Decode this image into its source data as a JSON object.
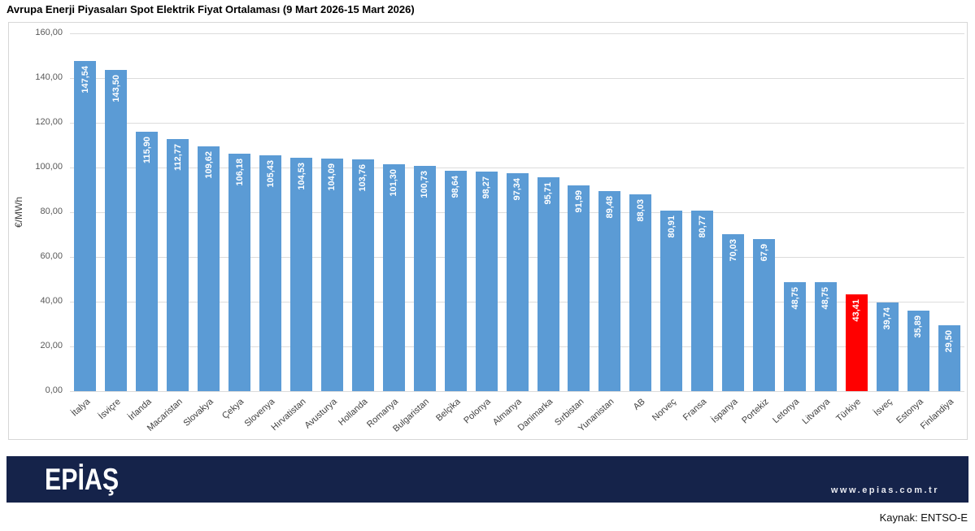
{
  "title": "Avrupa Enerji Piyasaları Spot Elektrik Fiyat Ortalaması (9 Mart 2026-15 Mart 2026)",
  "chart_data": {
    "type": "bar",
    "title": "Avrupa Enerji Piyasaları Spot Elektrik Fiyat Ortalaması (9 Mart 2026-15 Mart 2026)",
    "ylabel": "€/MWh",
    "xlabel": "",
    "ylim": [
      0,
      160
    ],
    "ytick_step": 20,
    "ytick_labels_top_to_bottom": [
      "160,00",
      "140,00",
      "120,00",
      "100,00",
      "80,00",
      "60,00",
      "40,00",
      "20,00",
      "0,00"
    ],
    "grid": true,
    "legend": false,
    "categories": [
      "İtalya",
      "İsviçre",
      "İrlanda",
      "Macaristan",
      "Slovakya",
      "Çekya",
      "Slovenya",
      "Hırvatistan",
      "Avusturya",
      "Hollanda",
      "Romanya",
      "Bulgaristan",
      "Belçika",
      "Polonya",
      "Almanya",
      "Danimarka",
      "Sırbistan",
      "Yunanistan",
      "AB",
      "Norveç",
      "Fransa",
      "İspanya",
      "Portekiz",
      "Letonya",
      "Litvanya",
      "Türkiye",
      "İsveç",
      "Estonya",
      "Finlandiya"
    ],
    "values": [
      147.54,
      143.5,
      115.9,
      112.77,
      109.62,
      106.18,
      105.43,
      104.53,
      104.09,
      103.76,
      101.3,
      100.73,
      98.64,
      98.27,
      97.34,
      95.71,
      91.99,
      89.48,
      88.03,
      80.91,
      80.77,
      70.03,
      67.9,
      48.75,
      48.75,
      43.41,
      39.74,
      35.89,
      29.5
    ],
    "value_labels": [
      "147,54",
      "143,50",
      "115,90",
      "112,77",
      "109,62",
      "106,18",
      "105,43",
      "104,53",
      "104,09",
      "103,76",
      "101,30",
      "100,73",
      "98,64",
      "98,27",
      "97,34",
      "95,71",
      "91,99",
      "89,48",
      "88,03",
      "80,91",
      "80,77",
      "70,03",
      "67,9",
      "48,75",
      "48,75",
      "43,41",
      "39,74",
      "35,89",
      "29,50"
    ],
    "bar_color": "#5b9bd5",
    "highlight_category": "Türkiye",
    "highlight_color": "#ff0000"
  },
  "footer": {
    "brand": "EPİAŞ",
    "website": "www.epias.com.tr",
    "source": "Kaynak: ENTSO-E",
    "bar_color": "#15234a"
  }
}
